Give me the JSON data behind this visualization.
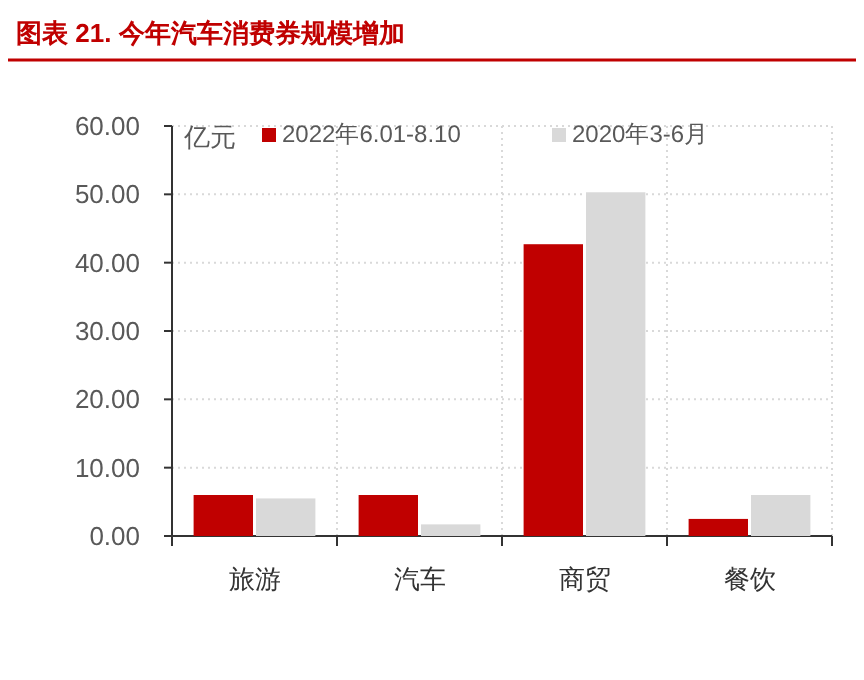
{
  "chart_data": {
    "type": "bar",
    "title": "图表 21. 今年汽车消费券规模增加",
    "ylabel": "亿元",
    "categories": [
      "旅游",
      "汽车",
      "商贸",
      "餐饮"
    ],
    "series": [
      {
        "name": "2022年6.01-8.10",
        "color": "#c00000",
        "values": [
          6.0,
          6.0,
          42.7,
          2.5
        ]
      },
      {
        "name": "2020年3-6月",
        "color": "#d9d9d9",
        "values": [
          5.5,
          1.7,
          50.3,
          6.0
        ]
      }
    ],
    "ylim": [
      0,
      60
    ],
    "yticks": [
      {
        "value": 0,
        "label": "0.00"
      },
      {
        "value": 10,
        "label": "10.00"
      },
      {
        "value": 20,
        "label": "20.00"
      },
      {
        "value": 30,
        "label": "30.00"
      },
      {
        "value": 40,
        "label": "40.00"
      },
      {
        "value": 50,
        "label": "50.00"
      },
      {
        "value": 60,
        "label": "60.00"
      }
    ],
    "grid": true,
    "legend": "top"
  }
}
